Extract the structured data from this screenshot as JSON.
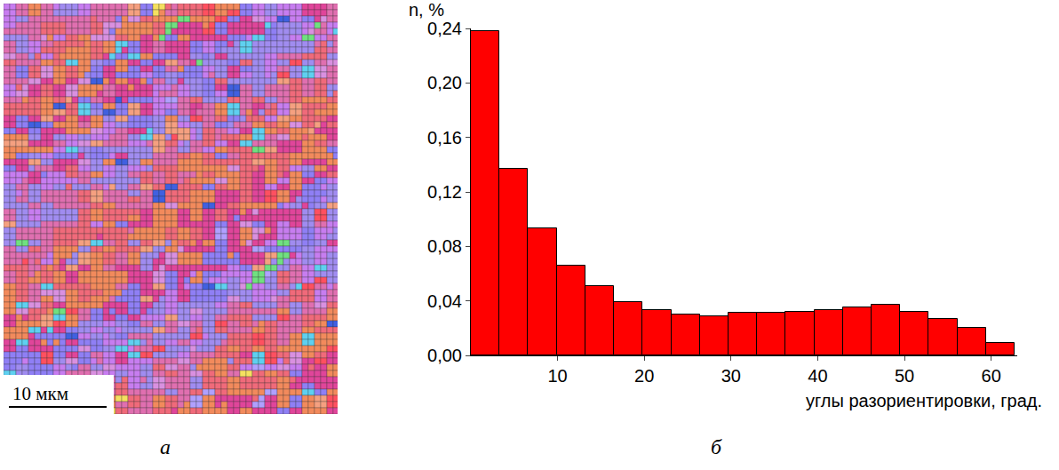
{
  "image_panel": {
    "label": "а",
    "scale_bar": "10 мкм"
  },
  "chart_data": {
    "type": "histogram",
    "panel_label": "б",
    "x_label": "углы разориентировки, град.",
    "y_label": "n, %",
    "bins": [
      0,
      3.3,
      6.6,
      9.9,
      13.2,
      16.5,
      19.8,
      23.1,
      26.4,
      29.7,
      33,
      36.3,
      39.6,
      42.9,
      46.2,
      49.5,
      52.8,
      56.1,
      59.4,
      62.7
    ],
    "values": [
      0.238,
      0.137,
      0.093,
      0.066,
      0.051,
      0.039,
      0.033,
      0.03,
      0.029,
      0.031,
      0.031,
      0.032,
      0.033,
      0.035,
      0.037,
      0.032,
      0.027,
      0.02,
      0.009
    ],
    "color": "#ff0000",
    "xlim": [
      0,
      63
    ],
    "xticks": [
      10,
      20,
      30,
      40,
      50,
      60
    ],
    "ylim": [
      0,
      0.24
    ],
    "yticks": [
      {
        "value": 0,
        "label": "0,00"
      },
      {
        "value": 0.04,
        "label": "0,04"
      },
      {
        "value": 0.08,
        "label": "0,08"
      },
      {
        "value": 0.12,
        "label": "0,12"
      },
      {
        "value": 0.16,
        "label": "0,16"
      },
      {
        "value": 0.2,
        "label": "0,20"
      },
      {
        "value": 0.24,
        "label": "0,24"
      }
    ],
    "grid": false
  }
}
